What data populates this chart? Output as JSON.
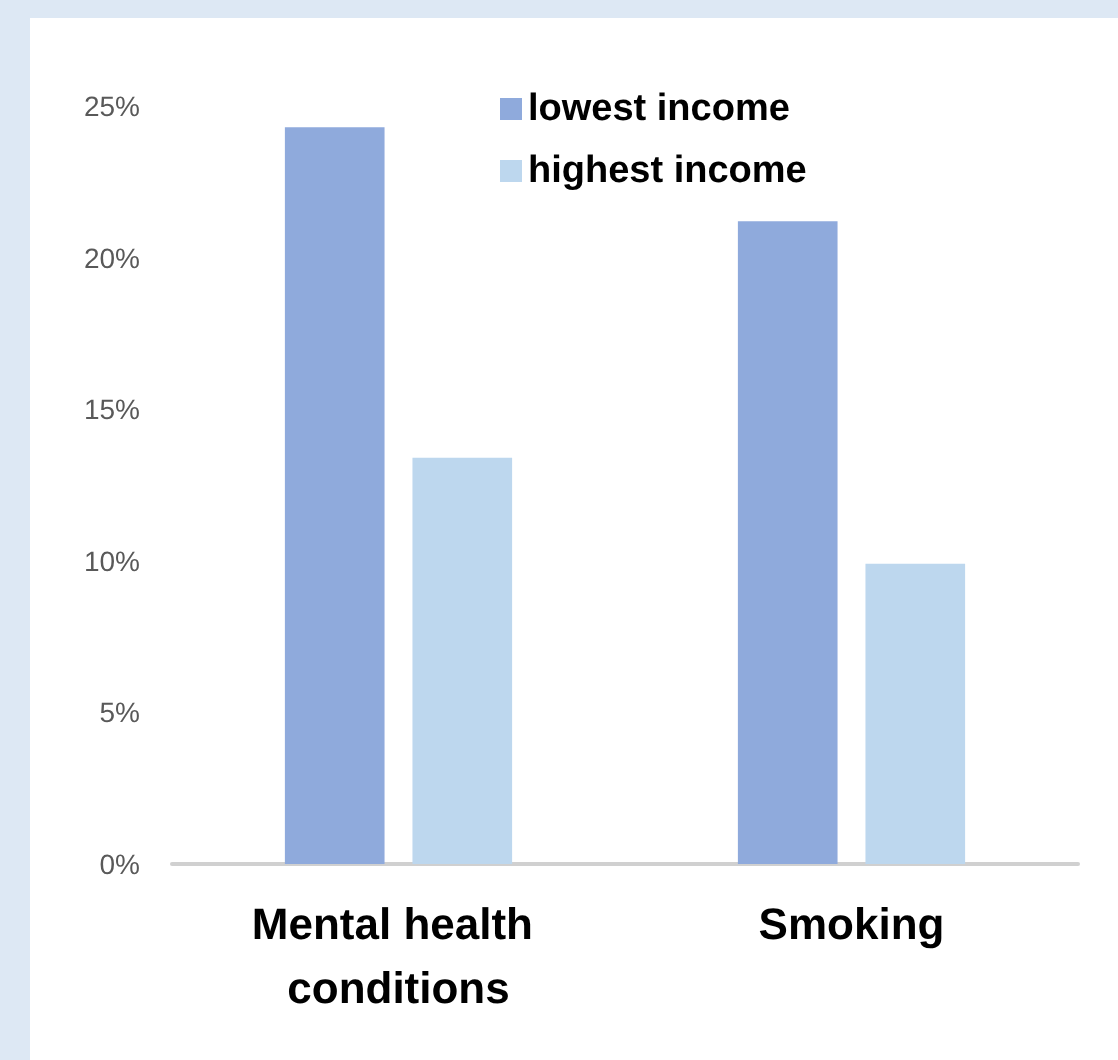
{
  "chart_data": {
    "type": "bar",
    "categories": [
      "Mental health conditions",
      "Smoking"
    ],
    "series": [
      {
        "name": "lowest income",
        "color": "#8faadc",
        "values": [
          24.3,
          21.2
        ]
      },
      {
        "name": "highest income",
        "color": "#bdd7ee",
        "values": [
          13.4,
          9.9
        ]
      }
    ],
    "ylim": [
      0,
      25
    ],
    "yticks": [
      {
        "value": 0,
        "label": "0%"
      },
      {
        "value": 5,
        "label": "5%"
      },
      {
        "value": 10,
        "label": "10%"
      },
      {
        "value": 15,
        "label": "15%"
      },
      {
        "value": 20,
        "label": "20%"
      },
      {
        "value": 25,
        "label": "25%"
      }
    ],
    "grid": false,
    "legend": "top"
  }
}
